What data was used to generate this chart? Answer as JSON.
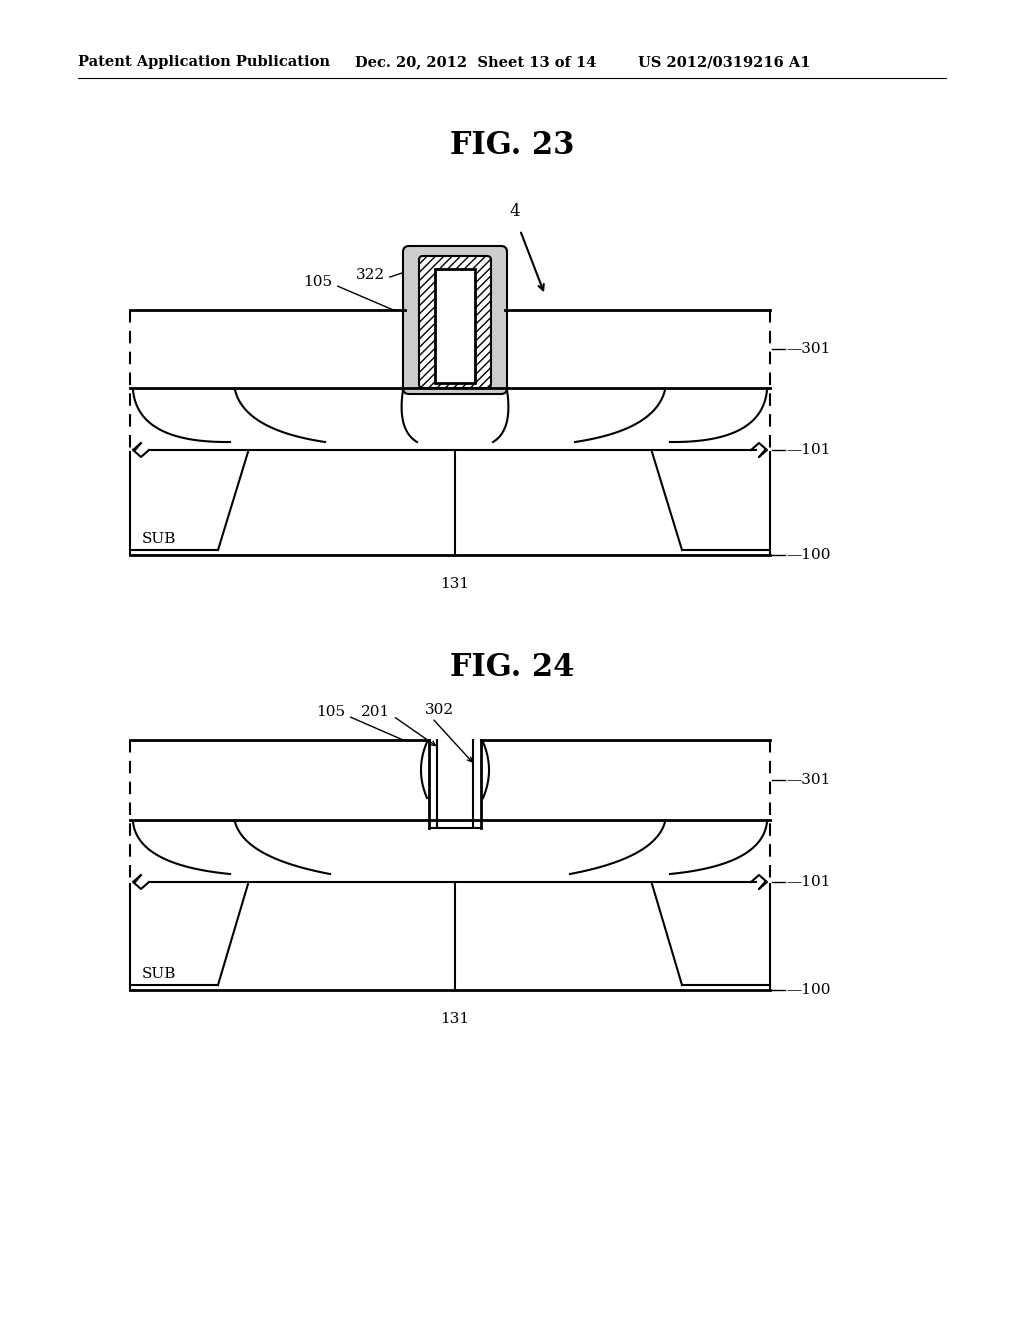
{
  "bg_color": "#ffffff",
  "fig_width": 10.24,
  "fig_height": 13.2,
  "header_text": "Patent Application Publication",
  "header_date": "Dec. 20, 2012  Sheet 13 of 14",
  "header_patent": "US 2012/0319216 A1",
  "fig23_title": "FIG. 23",
  "fig24_title": "FIG. 24"
}
